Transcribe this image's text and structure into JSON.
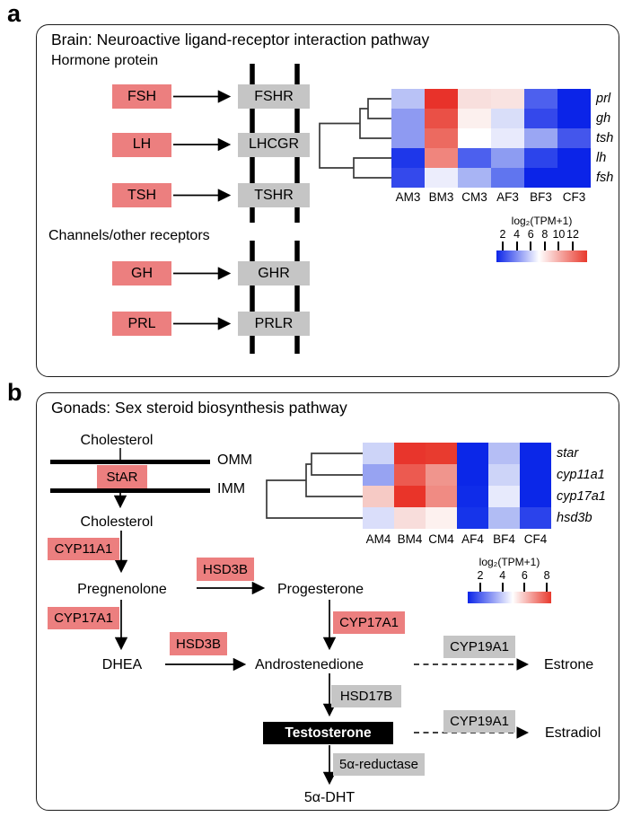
{
  "figure": {
    "colors": {
      "ligand_box": "#ec7f7f",
      "receptor_box": "#c5c5c5",
      "testosterone_box": "#000000",
      "testosterone_text": "#ffffff",
      "heat_low": "#0b24e8",
      "heat_high": "#e8392d"
    },
    "panel_a": {
      "label": "a",
      "title": "Brain: Neuroactive ligand-receptor interaction pathway",
      "section1_heading": "Hormone protein",
      "section2_heading": "Channels/other receptors",
      "pairs1": [
        {
          "ligand": "FSH",
          "receptor": "FSHR"
        },
        {
          "ligand": "LH",
          "receptor": "LHCGR"
        },
        {
          "ligand": "TSH",
          "receptor": "TSHR"
        }
      ],
      "pairs2": [
        {
          "ligand": "GH",
          "receptor": "GHR"
        },
        {
          "ligand": "PRL",
          "receptor": "PRLR"
        }
      ]
    },
    "panel_b": {
      "label": "b",
      "title": "Gonads: Sex steroid biosynthesis pathway",
      "membrane_labels": {
        "outer": "OMM",
        "inner": "IMM"
      },
      "metabolites": {
        "cholesterol_outer": "Cholesterol",
        "cholesterol_inner": "Cholesterol",
        "pregnenolone": "Pregnenolone",
        "progesterone": "Progesterone",
        "dhea": "DHEA",
        "androstenedione": "Androstenedione",
        "estrone": "Estrone",
        "testosterone": "Testosterone",
        "estradiol": "Estradiol",
        "dht": "5α-DHT"
      },
      "enzymes": {
        "star": "StAR",
        "cyp11a1": "CYP11A1",
        "hsd3b_1": "HSD3B",
        "cyp17a1_1": "CYP17A1",
        "hsd3b_2": "HSD3B",
        "cyp17a1_2": "CYP17A1",
        "cyp19a1_1": "CYP19A1",
        "hsd17b": "HSD17B",
        "cyp19a1_2": "CYP19A1",
        "reductase_5a": "5α-reductase"
      }
    }
  },
  "chart_data": [
    {
      "type": "heatmap",
      "categories": [
        "AM3",
        "BM3",
        "CM3",
        "AF3",
        "BF3",
        "CF3"
      ],
      "rows": [
        "prl",
        "gh",
        "tsh",
        "lh",
        "fsh"
      ],
      "values": [
        [
          5.5,
          12.0,
          7.5,
          7.4,
          4.0,
          2.0
        ],
        [
          4.5,
          11.0,
          7.0,
          6.0,
          3.5,
          2.0
        ],
        [
          4.5,
          10.0,
          6.8,
          6.5,
          5.0,
          3.5
        ],
        [
          2.5,
          9.5,
          4.0,
          4.5,
          3.0,
          2.0
        ],
        [
          3.5,
          6.8,
          5.0,
          4.0,
          2.0,
          2.0
        ]
      ],
      "cell_colors": [
        [
          "#b9c2f6",
          "#e8322a",
          "#f8dfdd",
          "#f9e3e1",
          "#4d60ee",
          "#0b24e8"
        ],
        [
          "#8e9af2",
          "#ea5046",
          "#fcf0ee",
          "#d9def9",
          "#3448eb",
          "#0b24e8"
        ],
        [
          "#8e9af2",
          "#ec6a60",
          "#ffffff",
          "#e8eafc",
          "#9aa6f3",
          "#4456ec"
        ],
        [
          "#1e37ea",
          "#f0857d",
          "#4c60ee",
          "#8d9cf2",
          "#2c44eb",
          "#0b24e8"
        ],
        [
          "#3449ec",
          "#ecedfc",
          "#a8b4f4",
          "#6075ef",
          "#0b24e8",
          "#0b24e8"
        ]
      ],
      "legend_title": "log₂(TPM+1)",
      "legend_ticks": [
        2,
        4,
        6,
        8,
        10,
        12
      ],
      "scale_range": [
        2,
        12
      ],
      "colormap": "blue-white-red",
      "legend_position": "below-right"
    },
    {
      "type": "heatmap",
      "categories": [
        "AM4",
        "BM4",
        "CM4",
        "AF4",
        "BF4",
        "CF4"
      ],
      "rows": [
        "star",
        "cyp11a1",
        "cyp17a1",
        "hsd3b"
      ],
      "values": [
        [
          4.3,
          8.0,
          8.0,
          2.0,
          4.2,
          2.0
        ],
        [
          3.6,
          7.2,
          6.7,
          2.0,
          4.3,
          2.0
        ],
        [
          5.6,
          8.0,
          6.9,
          2.1,
          4.9,
          2.0
        ],
        [
          4.6,
          5.5,
          5.2,
          2.2,
          4.1,
          2.5
        ]
      ],
      "cell_colors": [
        [
          "#cdd4f8",
          "#e8352c",
          "#e83b2f",
          "#0b27e8",
          "#b5bef5",
          "#0b27e8"
        ],
        [
          "#97a3f2",
          "#ec5a50",
          "#f0958d",
          "#0b27e8",
          "#cdd4f8",
          "#0b27e8"
        ],
        [
          "#f6cac5",
          "#e93429",
          "#f08b83",
          "#0f2ce9",
          "#e7eafc",
          "#0b27e8"
        ],
        [
          "#dadefa",
          "#f8dddb",
          "#fdf1ef",
          "#1634ea",
          "#b1bcf4",
          "#2b43eb"
        ]
      ],
      "legend_title": "log₂(TPM+1)",
      "legend_ticks": [
        2,
        4,
        6,
        8
      ],
      "scale_range": [
        2,
        8
      ],
      "colormap": "blue-white-red",
      "legend_position": "below-right"
    }
  ]
}
